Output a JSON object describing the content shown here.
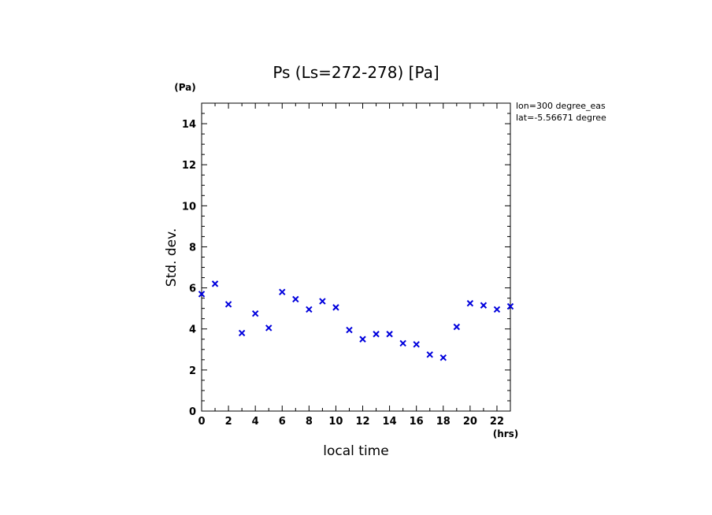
{
  "chart_data": {
    "type": "scatter",
    "title": "Ps (Ls=272-278) [Pa]",
    "xlabel": "local time",
    "ylabel": "Std. dev.",
    "x_unit": "(hrs)",
    "y_unit": "(Pa)",
    "xlim": [
      0,
      23
    ],
    "ylim": [
      0,
      15
    ],
    "x_ticks": [
      0,
      2,
      4,
      6,
      8,
      10,
      12,
      14,
      16,
      18,
      20,
      22
    ],
    "y_ticks": [
      0,
      2,
      4,
      6,
      8,
      10,
      12,
      14
    ],
    "annotations": [
      "lon=300 degree_eas",
      "lat=-5.56671 degree"
    ],
    "marker": "x",
    "marker_color": "#0000dd",
    "series": [
      {
        "x": [
          0,
          1,
          2,
          3,
          4,
          5,
          6,
          7,
          8,
          9,
          10,
          11,
          12,
          13,
          14,
          15,
          16,
          17,
          18,
          19,
          20,
          21,
          22,
          23
        ],
        "values": [
          5.7,
          6.2,
          5.2,
          3.8,
          4.75,
          4.05,
          5.8,
          5.45,
          4.95,
          5.35,
          5.05,
          3.95,
          3.5,
          3.75,
          3.75,
          3.3,
          3.25,
          2.75,
          2.6,
          4.1,
          5.25,
          5.15,
          4.95,
          5.1
        ]
      }
    ]
  }
}
